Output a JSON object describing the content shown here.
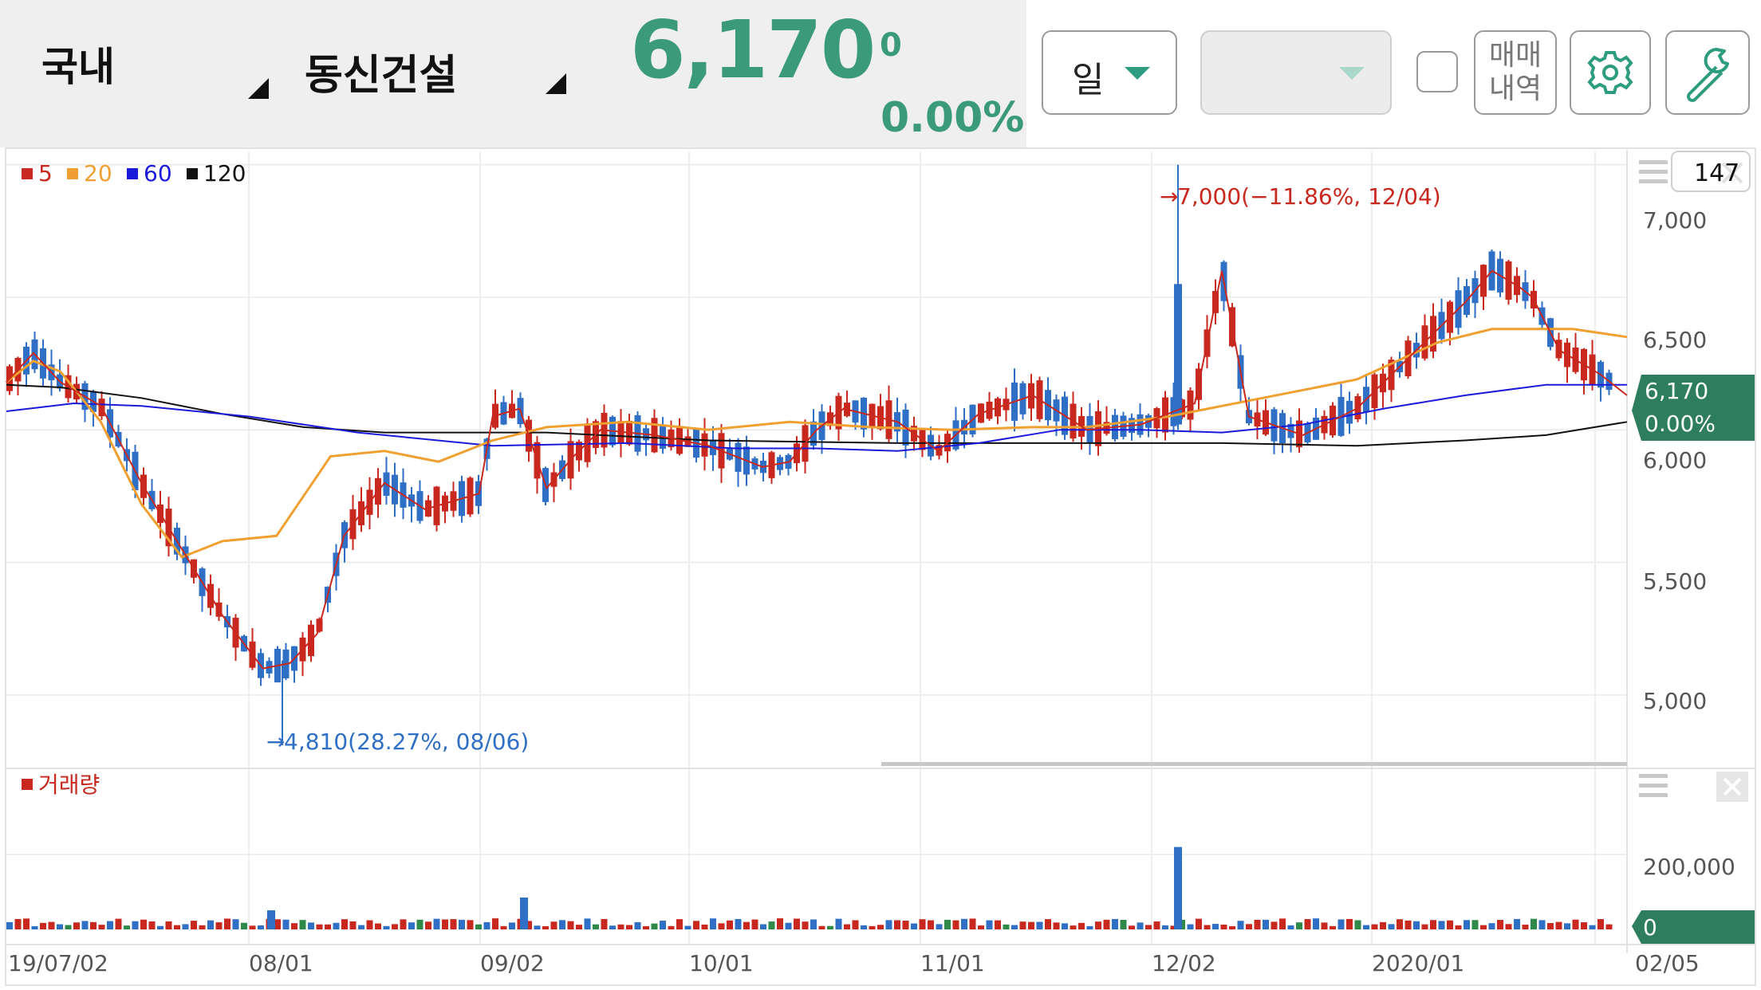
{
  "header": {
    "market": "국내",
    "stock_name": "동신건설",
    "price": "6,170",
    "change": "0",
    "change_pct": "0.00%",
    "period_select": "일",
    "secondary_select": "",
    "trade_history_line1": "매매",
    "trade_history_line2": "내역",
    "settings_icon": "gear-icon",
    "tools_icon": "wrench-icon"
  },
  "colors": {
    "up": "#c8281e",
    "down": "#2f6fc6",
    "ma5": "#c8281e",
    "ma20": "#f0a030",
    "ma60": "#1a1adb",
    "ma120": "#111111",
    "accent": "#3a9a7a",
    "price_tag": "#2e7d5f"
  },
  "chart_data": {
    "type": "candlestick",
    "legend": [
      "5",
      "20",
      "60",
      "120"
    ],
    "visible_count": "147",
    "y_ticks": [
      "7,000",
      "6,500",
      "6,000",
      "5,500",
      "5,000"
    ],
    "y_range": [
      4750,
      7050
    ],
    "x_ticks": [
      "19/07/02",
      "08/01",
      "09/02",
      "10/01",
      "11/01",
      "12/02",
      "2020/01",
      "02/05"
    ],
    "current_price_label": "6,170",
    "current_pct_label": "0.00%",
    "high_annotation": "7,000(−11.86%, 12/04)",
    "low_annotation": "4,810(28.27%, 08/06)",
    "volume": {
      "label": "거래량",
      "y_tick": "200,000",
      "current_label": "0",
      "spike_value": 220000
    },
    "moving_averages": {
      "ma20": [
        [
          0,
          6180
        ],
        [
          10,
          6260
        ],
        [
          20,
          6220
        ],
        [
          35,
          6030
        ],
        [
          50,
          5720
        ],
        [
          65,
          5520
        ],
        [
          80,
          5580
        ],
        [
          100,
          5600
        ],
        [
          120,
          5900
        ],
        [
          140,
          5920
        ],
        [
          160,
          5880
        ],
        [
          180,
          5960
        ],
        [
          200,
          6010
        ],
        [
          230,
          6030
        ],
        [
          260,
          6000
        ],
        [
          290,
          6030
        ],
        [
          320,
          6010
        ],
        [
          350,
          6000
        ],
        [
          380,
          6010
        ],
        [
          400,
          6010
        ],
        [
          430,
          6050
        ],
        [
          460,
          6110
        ],
        [
          500,
          6190
        ],
        [
          530,
          6330
        ],
        [
          550,
          6380
        ],
        [
          580,
          6380
        ],
        [
          600,
          6350
        ]
      ],
      "ma60": [
        [
          0,
          6070
        ],
        [
          25,
          6100
        ],
        [
          50,
          6090
        ],
        [
          90,
          6050
        ],
        [
          130,
          5990
        ],
        [
          180,
          5940
        ],
        [
          230,
          5950
        ],
        [
          270,
          5930
        ],
        [
          300,
          5930
        ],
        [
          330,
          5920
        ],
        [
          360,
          5950
        ],
        [
          390,
          6000
        ],
        [
          420,
          6000
        ],
        [
          450,
          5990
        ],
        [
          480,
          6020
        ],
        [
          510,
          6080
        ],
        [
          540,
          6130
        ],
        [
          570,
          6170
        ],
        [
          600,
          6170
        ]
      ],
      "ma120": [
        [
          0,
          6170
        ],
        [
          20,
          6160
        ],
        [
          50,
          6120
        ],
        [
          80,
          6060
        ],
        [
          110,
          6010
        ],
        [
          140,
          5990
        ],
        [
          200,
          5990
        ],
        [
          260,
          5960
        ],
        [
          330,
          5950
        ],
        [
          400,
          5950
        ],
        [
          450,
          5950
        ],
        [
          500,
          5940
        ],
        [
          540,
          5960
        ],
        [
          570,
          5980
        ],
        [
          600,
          6030
        ]
      ],
      "ma5": [
        [
          0,
          6180
        ],
        [
          10,
          6290
        ],
        [
          20,
          6180
        ],
        [
          35,
          6090
        ],
        [
          50,
          5800
        ],
        [
          80,
          5300
        ],
        [
          95,
          5100
        ],
        [
          105,
          5120
        ],
        [
          115,
          5230
        ],
        [
          125,
          5600
        ],
        [
          140,
          5800
        ],
        [
          155,
          5700
        ],
        [
          175,
          5760
        ],
        [
          180,
          6050
        ],
        [
          190,
          6080
        ],
        [
          200,
          5780
        ],
        [
          210,
          5900
        ],
        [
          220,
          6000
        ],
        [
          240,
          5980
        ],
        [
          260,
          5940
        ],
        [
          280,
          5860
        ],
        [
          290,
          5880
        ],
        [
          300,
          6000
        ],
        [
          310,
          6080
        ],
        [
          330,
          6030
        ],
        [
          345,
          5920
        ],
        [
          360,
          6060
        ],
        [
          380,
          6130
        ],
        [
          400,
          6000
        ],
        [
          420,
          6020
        ],
        [
          440,
          6100
        ],
        [
          450,
          6600
        ],
        [
          460,
          6050
        ],
        [
          480,
          5980
        ],
        [
          500,
          6080
        ],
        [
          520,
          6280
        ],
        [
          540,
          6480
        ],
        [
          550,
          6600
        ],
        [
          560,
          6540
        ],
        [
          565,
          6500
        ],
        [
          575,
          6300
        ],
        [
          590,
          6210
        ],
        [
          600,
          6130
        ]
      ]
    }
  }
}
